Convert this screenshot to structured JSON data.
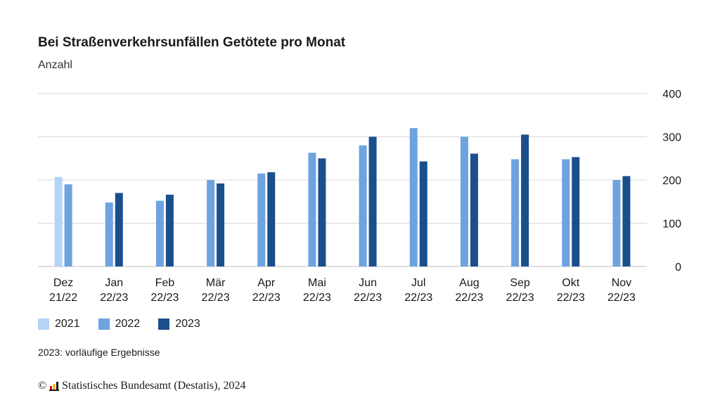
{
  "title": "Bei Straßenverkehrsunfällen Getötete pro Monat",
  "subtitle": "Anzahl",
  "footnote": "2023: vorläufige Ergebnisse",
  "source": {
    "copyright_symbol": "©",
    "text": "Statistisches Bundesamt (Destatis), 2024"
  },
  "colors": {
    "2021": "#b3d4f7",
    "2022": "#6ea3e0",
    "2023": "#1b4f8c",
    "grid": "#d9d9d9",
    "axis_text": "#1a1a1a"
  },
  "chart_data": {
    "type": "bar",
    "title": "Bei Straßenverkehrsunfällen Getötete pro Monat",
    "ylabel": "Anzahl",
    "ylim": [
      0,
      400
    ],
    "yticks": [
      0,
      100,
      200,
      300,
      400
    ],
    "y_axis_side": "right",
    "grid": true,
    "legend_position": "bottom-left",
    "categories": [
      [
        "Dez",
        "21/22"
      ],
      [
        "Jan",
        "22/23"
      ],
      [
        "Feb",
        "22/23"
      ],
      [
        "Mär",
        "22/23"
      ],
      [
        "Apr",
        "22/23"
      ],
      [
        "Mai",
        "22/23"
      ],
      [
        "Jun",
        "22/23"
      ],
      [
        "Jul",
        "22/23"
      ],
      [
        "Aug",
        "22/23"
      ],
      [
        "Sep",
        "22/23"
      ],
      [
        "Okt",
        "22/23"
      ],
      [
        "Nov",
        "22/23"
      ]
    ],
    "series": [
      {
        "name": "2021",
        "color": "#b3d4f7",
        "values": [
          207,
          null,
          null,
          null,
          null,
          null,
          null,
          null,
          null,
          null,
          null,
          null
        ]
      },
      {
        "name": "2022",
        "color": "#6ea3e0",
        "values": [
          190,
          148,
          152,
          200,
          215,
          263,
          280,
          320,
          300,
          248,
          248,
          200
        ]
      },
      {
        "name": "2023",
        "color": "#1b4f8c",
        "values": [
          null,
          170,
          166,
          192,
          218,
          250,
          300,
          243,
          261,
          305,
          253,
          209
        ]
      }
    ]
  }
}
